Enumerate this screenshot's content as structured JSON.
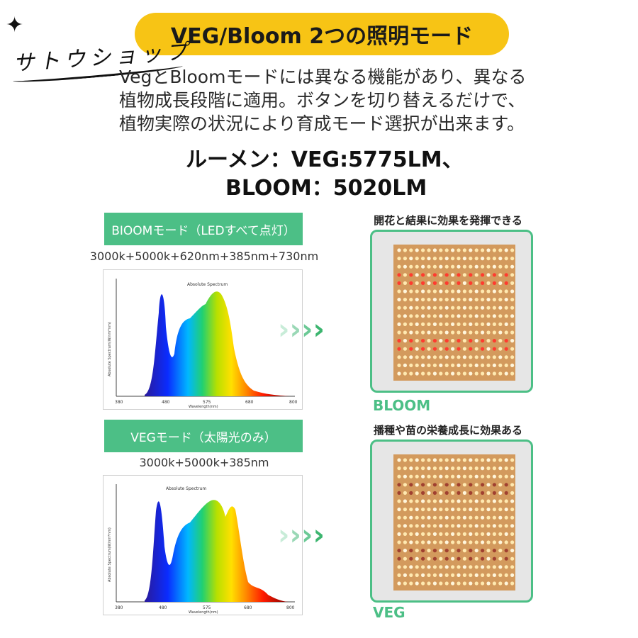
{
  "header": {
    "sparkle_glyph": "✦",
    "store_name": "サトウショップ",
    "title": "VEG/Bloom 2つの照明モード"
  },
  "description": {
    "line1": "VegとBloomモードには異なる機能があり、異なる",
    "line2": "植物成長段階に適用。ボタンを切り替えるだけで、",
    "line3": "植物実際の状況により育成モード選択が出来ます。"
  },
  "lumen": {
    "line1": "ルーメン：VEG:5775LM、",
    "line2": "BLOOM：5020LM"
  },
  "bloom": {
    "bar_label": "BIOOMモード（LEDすべて点灯）",
    "combo": "3000k+5000k+620nm+385nm+730nm",
    "effect": "開花と結果に効果を発揮できる",
    "mode_label": "BLOOM",
    "spectrum": {
      "title": "Absolute Spectrum",
      "xlabel": "Wavelength(nm)",
      "ylabel": "Absolute Spectrum(W/nm*nm)",
      "xticks": [
        "380",
        "480",
        "575",
        "680",
        "800"
      ]
    }
  },
  "veg": {
    "bar_label": "VEGモード（太陽光のみ）",
    "combo": "3000k+5000k+385nm",
    "effect": "播種や苗の栄養成長に効果ある",
    "mode_label": "VEG",
    "spectrum": {
      "title": "Absolute Spectrum",
      "xlabel": "Wavelength(nm)",
      "ylabel": "Absolute Spectrum(W/nm*nm)",
      "xticks": [
        "380",
        "480",
        "575",
        "680",
        "800"
      ]
    }
  },
  "colors": {
    "accent_green": "#4cbf86",
    "title_yellow": "#f7c415",
    "panel_board": "#d39a5d",
    "led_warm": "#ffe9b0",
    "led_red": "#ff3b2f"
  },
  "icons": {
    "arrow": "chevron-right-icon"
  }
}
